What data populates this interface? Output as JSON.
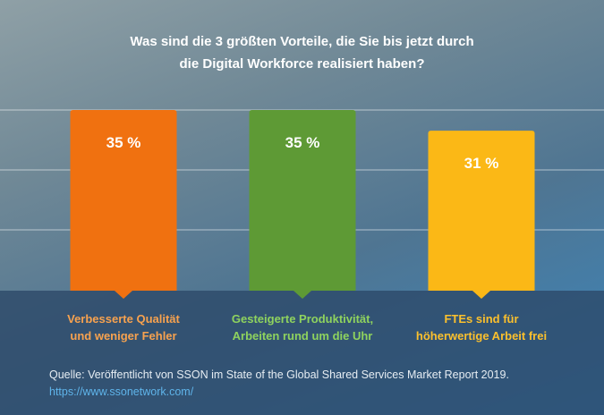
{
  "chart_data": {
    "type": "bar",
    "title": [
      "Was sind die 3 größten Vorteile, die Sie bis jetzt durch",
      "die Digital Workforce realisiert haben?"
    ],
    "categories": [
      [
        "Verbesserte Qualität",
        "und weniger Fehler"
      ],
      [
        "Gesteigerte Produktivität,",
        "Arbeiten rund um die Uhr"
      ],
      [
        "FTEs sind für",
        "höherwertige Arbeit frei"
      ]
    ],
    "values": [
      35,
      35,
      31
    ],
    "value_labels": [
      "35 %",
      "35 %",
      "31 %"
    ],
    "colors": [
      "#f07110",
      "#5e9a35",
      "#fbb816"
    ],
    "label_colors": [
      "#f7a24f",
      "#8fd35e",
      "#fbc02d"
    ],
    "ylim": [
      0,
      35
    ],
    "grid": true
  },
  "source": {
    "text": "Quelle: Veröffentlicht von SSON im State of the Global Shared Services Market Report 2019.",
    "link": "https://www.ssonetwork.com/"
  }
}
